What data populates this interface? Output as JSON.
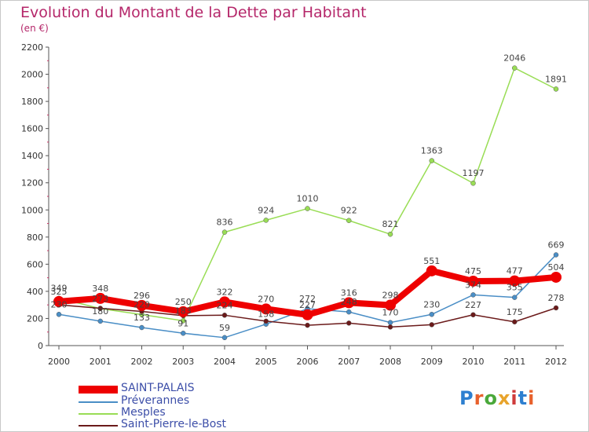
{
  "chart_data": {
    "type": "line",
    "title": "Evolution du Montant de la Dette par Habitant",
    "subtitle": "(en €)",
    "xlabel": "",
    "ylabel": "",
    "x": [
      "2000",
      "2001",
      "2002",
      "2003",
      "2004",
      "2005",
      "2006",
      "2007",
      "2008",
      "2009",
      "2010",
      "2011",
      "2012"
    ],
    "ylim": [
      0,
      2200
    ],
    "yticks": [
      "0",
      "200",
      "400",
      "600",
      "800",
      "1000",
      "1200",
      "1400",
      "1600",
      "1800",
      "2000",
      "2200"
    ],
    "grid": false,
    "legend_position": "bottom-left",
    "series": [
      {
        "name": "SAINT-PALAIS",
        "color": "#ee0000",
        "emphasis": true,
        "values": [
          325,
          348,
          296,
          250,
          322,
          270,
          227,
          316,
          298,
          551,
          475,
          477,
          504
        ],
        "labels": [
          "325",
          "348",
          "296",
          "250",
          "322",
          "270",
          "227",
          "316",
          "298",
          "551",
          "475",
          "477",
          "504"
        ]
      },
      {
        "name": "Préverannes",
        "color": "#4a8ec6",
        "values": [
          230,
          180,
          133,
          91,
          59,
          158,
          272,
          248,
          170,
          230,
          374,
          355,
          669
        ],
        "labels": [
          "230",
          "180",
          "133",
          "91",
          "59",
          "158",
          "272",
          "248",
          "170",
          "230",
          "374",
          "355",
          "669"
        ]
      },
      {
        "name": "Mesples",
        "color": "#99dd55",
        "values": [
          349,
          273,
          229,
          183,
          836,
          924,
          1010,
          922,
          821,
          1363,
          1197,
          2046,
          1891
        ],
        "labels": [
          "349",
          "273",
          "229",
          "183",
          "836",
          "924",
          "1010",
          "922",
          "821",
          "1363",
          "1197",
          "2046",
          "1891"
        ]
      },
      {
        "name": "Saint-Pierre-le-Bost",
        "color": "#6b1a1a",
        "values": [
          300,
          275,
          252,
          221,
          224,
          180,
          150,
          166,
          137,
          154,
          227,
          175,
          278
        ],
        "labels": [
          "",
          "",
          "",
          "",
          "224",
          "",
          "",
          "",
          "",
          "",
          "227",
          "175",
          "278"
        ]
      }
    ]
  },
  "legend": {
    "items": [
      "SAINT-PALAIS",
      "Préverannes",
      "Mesples",
      "Saint-Pierre-le-Bost"
    ]
  },
  "logo": {
    "text": "Proxiti"
  }
}
